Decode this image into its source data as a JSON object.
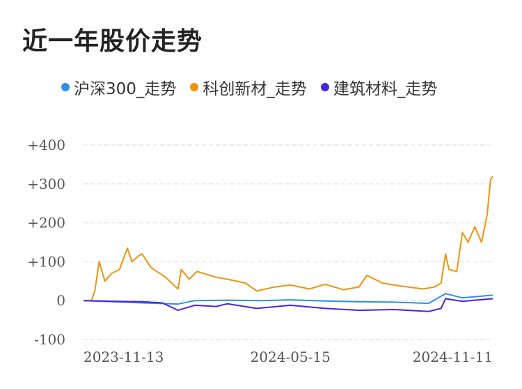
{
  "title": "近一年股价走势",
  "chart_data": {
    "type": "line",
    "title": "近一年股价走势",
    "xlabel": "",
    "ylabel": "",
    "x_ticks": [
      "2023-11-13",
      "2024-05-15",
      "2024-11-11"
    ],
    "y_ticks": [
      "+400",
      "+300",
      "+200",
      "+100",
      "0",
      "-100"
    ],
    "y_tick_values": [
      400,
      300,
      200,
      100,
      0,
      -100
    ],
    "ylim": [
      -100,
      400
    ],
    "xlim": [
      "2023-11-13",
      "2024-11-11"
    ],
    "grid": true,
    "legend_position": "top",
    "series": [
      {
        "name": "沪深300_走势",
        "color": "#2e8fe8",
        "points": [
          [
            "2023-11-13",
            0
          ],
          [
            "2023-12-10",
            -3
          ],
          [
            "2024-01-05",
            -6
          ],
          [
            "2024-02-05",
            -9
          ],
          [
            "2024-02-20",
            0
          ],
          [
            "2024-03-20",
            1
          ],
          [
            "2024-04-20",
            0
          ],
          [
            "2024-05-15",
            2
          ],
          [
            "2024-06-15",
            -1
          ],
          [
            "2024-07-15",
            -3
          ],
          [
            "2024-08-15",
            -4
          ],
          [
            "2024-09-15",
            -7
          ],
          [
            "2024-09-30",
            18
          ],
          [
            "2024-10-15",
            7
          ],
          [
            "2024-11-11",
            14
          ]
        ]
      },
      {
        "name": "科创新材_走势",
        "color": "#f0920e",
        "points": [
          [
            "2023-11-13",
            0
          ],
          [
            "2023-11-20",
            0
          ],
          [
            "2023-11-23",
            25
          ],
          [
            "2023-11-27",
            100
          ],
          [
            "2023-12-02",
            50
          ],
          [
            "2023-12-08",
            70
          ],
          [
            "2023-12-15",
            80
          ],
          [
            "2023-12-22",
            135
          ],
          [
            "2023-12-26",
            100
          ],
          [
            "2024-01-01",
            115
          ],
          [
            "2024-01-04",
            120
          ],
          [
            "2024-01-12",
            85
          ],
          [
            "2024-01-25",
            60
          ],
          [
            "2024-02-05",
            30
          ],
          [
            "2024-02-08",
            80
          ],
          [
            "2024-02-15",
            55
          ],
          [
            "2024-02-22",
            75
          ],
          [
            "2024-03-10",
            60
          ],
          [
            "2024-03-20",
            55
          ],
          [
            "2024-04-05",
            45
          ],
          [
            "2024-04-15",
            25
          ],
          [
            "2024-05-01",
            35
          ],
          [
            "2024-05-15",
            40
          ],
          [
            "2024-06-01",
            30
          ],
          [
            "2024-06-15",
            42
          ],
          [
            "2024-07-01",
            28
          ],
          [
            "2024-07-15",
            35
          ],
          [
            "2024-07-22",
            65
          ],
          [
            "2024-08-05",
            45
          ],
          [
            "2024-08-20",
            38
          ],
          [
            "2024-09-10",
            30
          ],
          [
            "2024-09-20",
            35
          ],
          [
            "2024-09-26",
            45
          ],
          [
            "2024-09-30",
            120
          ],
          [
            "2024-10-03",
            80
          ],
          [
            "2024-10-10",
            75
          ],
          [
            "2024-10-15",
            175
          ],
          [
            "2024-10-20",
            150
          ],
          [
            "2024-10-26",
            190
          ],
          [
            "2024-11-01",
            150
          ],
          [
            "2024-11-06",
            220
          ],
          [
            "2024-11-09",
            310
          ],
          [
            "2024-11-11",
            320
          ]
        ]
      },
      {
        "name": "建筑材料_走势",
        "color": "#4a22e0",
        "points": [
          [
            "2023-11-13",
            0
          ],
          [
            "2023-12-10",
            -2
          ],
          [
            "2024-01-05",
            -3
          ],
          [
            "2024-01-22",
            -6
          ],
          [
            "2024-02-05",
            -25
          ],
          [
            "2024-02-20",
            -12
          ],
          [
            "2024-03-10",
            -15
          ],
          [
            "2024-03-20",
            -8
          ],
          [
            "2024-04-15",
            -20
          ],
          [
            "2024-05-15",
            -12
          ],
          [
            "2024-06-15",
            -20
          ],
          [
            "2024-07-15",
            -25
          ],
          [
            "2024-08-15",
            -23
          ],
          [
            "2024-09-15",
            -28
          ],
          [
            "2024-09-26",
            -20
          ],
          [
            "2024-09-30",
            5
          ],
          [
            "2024-10-15",
            -2
          ],
          [
            "2024-11-11",
            5
          ]
        ]
      }
    ]
  }
}
